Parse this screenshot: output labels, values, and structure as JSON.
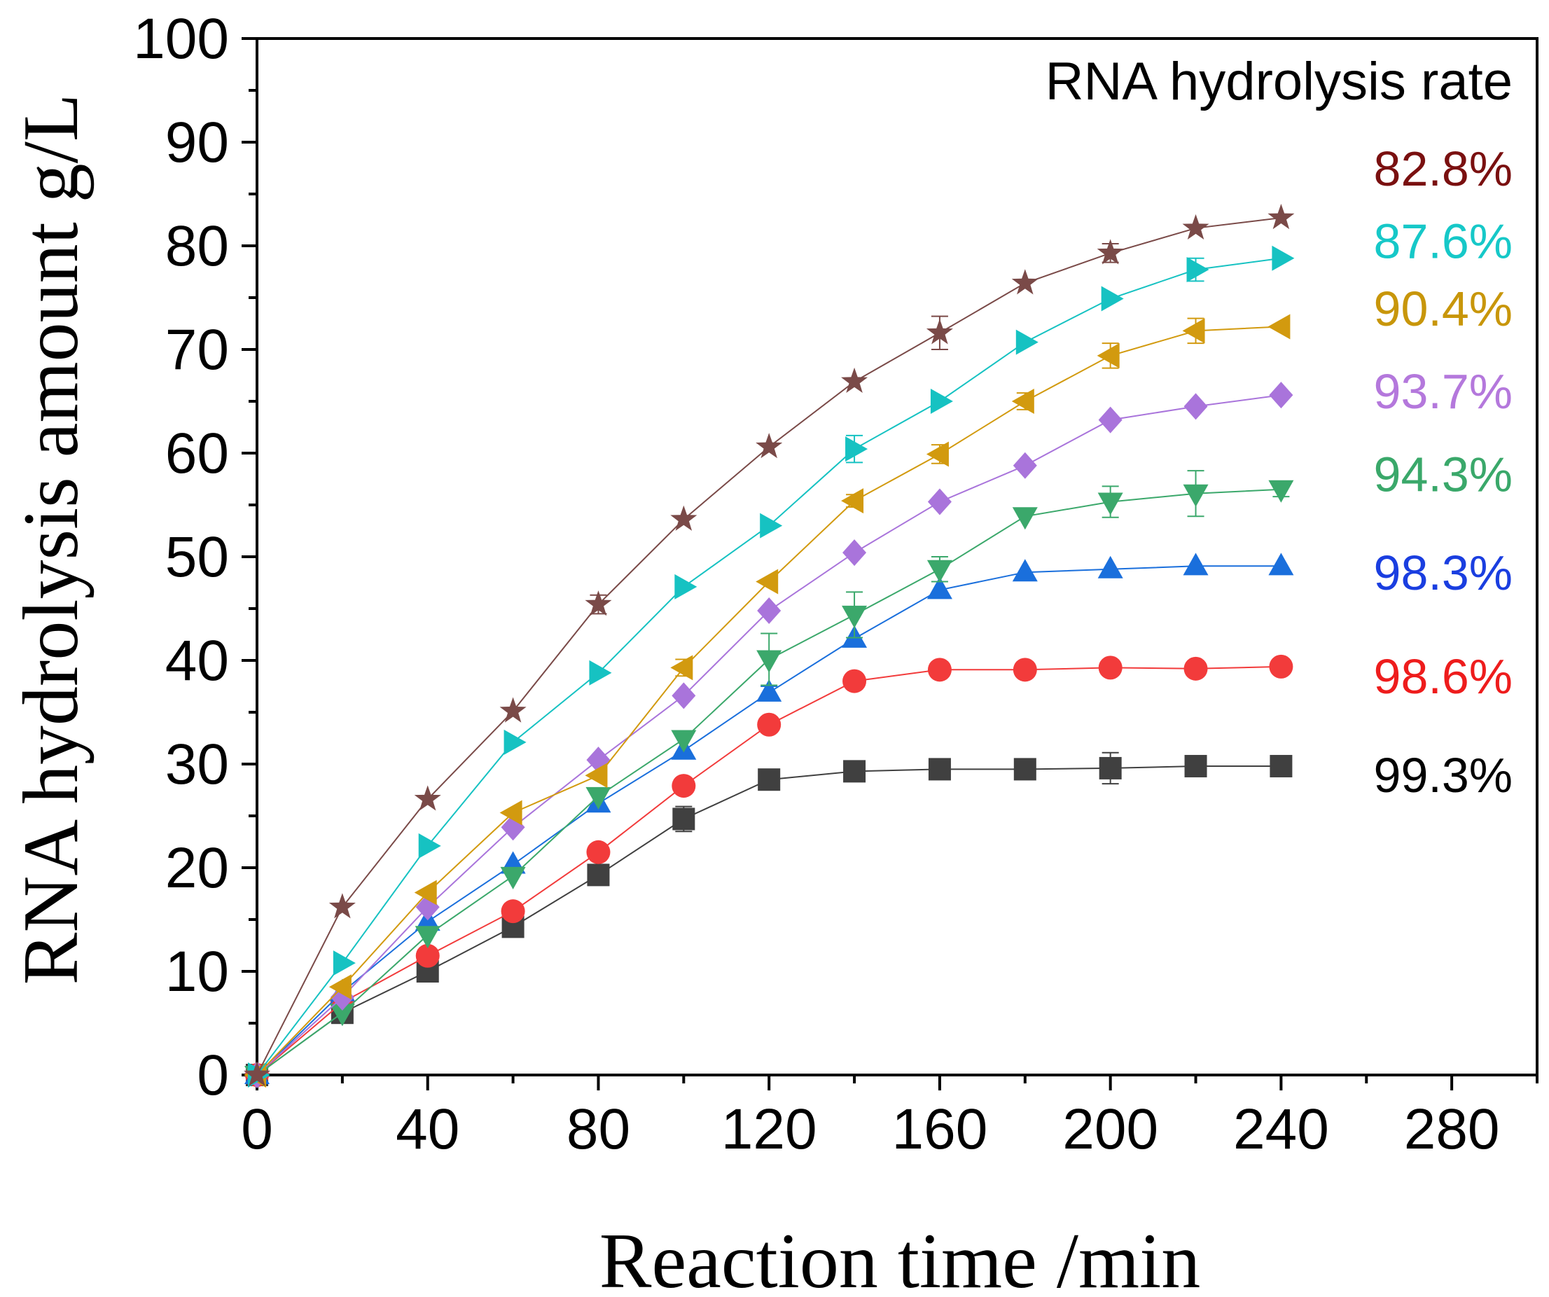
{
  "chart_data": {
    "type": "line",
    "title": "",
    "xlabel": "Reaction time /min",
    "ylabel": "RNA hydrolysis amount g/L",
    "xlim": [
      0,
      300
    ],
    "ylim": [
      0,
      100
    ],
    "xticks": [
      0,
      40,
      80,
      120,
      160,
      200,
      240,
      280
    ],
    "yticks": [
      0,
      10,
      20,
      30,
      40,
      50,
      60,
      70,
      80,
      90,
      100
    ],
    "x_minor_step": 20,
    "y_minor_step": 5,
    "legend_title": "RNA hydrolysis rate",
    "x": [
      0,
      20,
      40,
      60,
      80,
      100,
      120,
      140,
      160,
      180,
      200,
      220,
      240
    ],
    "series": [
      {
        "name": "99.3%",
        "color": "#404040",
        "marker": "square",
        "values": [
          0,
          6,
          10,
          14.3,
          19.3,
          24.7,
          28.5,
          29.3,
          29.5,
          29.5,
          29.6,
          29.8,
          29.8
        ],
        "errors": [
          0,
          0,
          0,
          0,
          0,
          1.2,
          0,
          0,
          0,
          0,
          1.5,
          0,
          0
        ]
      },
      {
        "name": "98.6%",
        "color": "#f23b3b",
        "marker": "circle",
        "values": [
          0,
          7,
          11.5,
          15.8,
          21.5,
          27.9,
          33.8,
          38,
          39.1,
          39.1,
          39.3,
          39.2,
          39.4
        ],
        "errors": [
          0,
          0,
          0,
          0,
          0,
          0,
          0,
          0,
          0,
          0,
          0,
          0,
          0
        ]
      },
      {
        "name": "98.3%",
        "color": "#1a6fdc",
        "marker": "triangle-up",
        "values": [
          0,
          8,
          14.8,
          20.3,
          26.2,
          31.3,
          36.9,
          42.1,
          46.8,
          48.5,
          48.8,
          49.1,
          49.1
        ],
        "errors": [
          0,
          0,
          0,
          0,
          0,
          0,
          0.6,
          0,
          0,
          0,
          0,
          0,
          0
        ]
      },
      {
        "name": "94.3%",
        "color": "#3ba86b",
        "marker": "triangle-down",
        "values": [
          0,
          6,
          13.5,
          19.2,
          26.9,
          32.4,
          40.1,
          44.4,
          48.8,
          53.9,
          55.3,
          56.1,
          56.5
        ],
        "errors": [
          0,
          0,
          0,
          0,
          0,
          0,
          2.5,
          2.2,
          1.2,
          0,
          1.5,
          2.2,
          0.7
        ]
      },
      {
        "name": "93.7%",
        "color": "#a974db",
        "marker": "diamond",
        "values": [
          0,
          7.5,
          16.2,
          23.9,
          30.4,
          36.6,
          44.8,
          50.4,
          55.3,
          58.8,
          63.2,
          64.5,
          65.6
        ],
        "errors": [
          0,
          0,
          0,
          0,
          0,
          0,
          0,
          0,
          0,
          0,
          0,
          0,
          0
        ]
      },
      {
        "name": "90.4%",
        "color": "#d29a0f",
        "marker": "triangle-left",
        "values": [
          0,
          8.5,
          17.6,
          25.3,
          28.9,
          39.3,
          47.6,
          55.4,
          59.9,
          65,
          69.4,
          71.8,
          72.2
        ],
        "errors": [
          0,
          0,
          0,
          0,
          0,
          0.8,
          0,
          0.6,
          0.9,
          0.8,
          1.2,
          1.2,
          0
        ]
      },
      {
        "name": "87.6%",
        "color": "#16c2c2",
        "marker": "triangle-right",
        "values": [
          0,
          10.8,
          22.1,
          32.1,
          38.8,
          47.1,
          53,
          60.4,
          65,
          70.7,
          74.9,
          77.7,
          78.8
        ],
        "errors": [
          0,
          0,
          0,
          0,
          0,
          0,
          0,
          1.3,
          0,
          0,
          0,
          1.1,
          0
        ]
      },
      {
        "name": "82.8%",
        "color": "#7a4a48",
        "marker": "star",
        "values": [
          0,
          16.2,
          26.6,
          35.1,
          45.4,
          53.6,
          60.6,
          66.9,
          71.6,
          76.4,
          79.3,
          81.7,
          82.7
        ],
        "errors": [
          0,
          0,
          0,
          0,
          0.9,
          0,
          0,
          0,
          1.6,
          0,
          0.9,
          0,
          0
        ]
      }
    ],
    "annotations": [
      {
        "text": "82.8%",
        "color": "#7a1010",
        "y": 87.5
      },
      {
        "text": "87.6%",
        "color": "#16c8c8",
        "y": 80.5
      },
      {
        "text": "90.4%",
        "color": "#c8960a",
        "y": 74
      },
      {
        "text": "93.7%",
        "color": "#b478dc",
        "y": 66
      },
      {
        "text": "94.3%",
        "color": "#3aa86a",
        "y": 58
      },
      {
        "text": "98.3%",
        "color": "#1a3ee0",
        "y": 48.5
      },
      {
        "text": "98.6%",
        "color": "#ee1c1c",
        "y": 38.5
      },
      {
        "text": "99.3%",
        "color": "#000000",
        "y": 29
      }
    ],
    "grid": false
  }
}
